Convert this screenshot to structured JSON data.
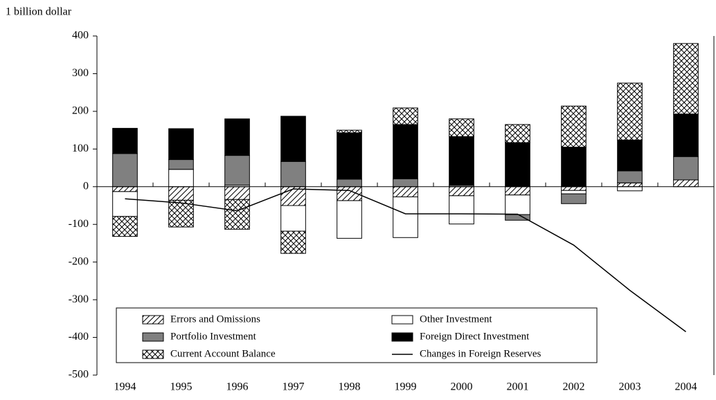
{
  "chart_data": {
    "type": "bar",
    "stacked": true,
    "y_axis_label": "1 billion dollar",
    "categories": [
      "1994",
      "1995",
      "1996",
      "1997",
      "1998",
      "1999",
      "2000",
      "2001",
      "2002",
      "2003",
      "2004"
    ],
    "series": [
      {
        "name": "Errors and Omissions",
        "color": "#ffffff",
        "pattern": "hatch",
        "values": [
          -13,
          -36,
          -34,
          -50,
          -37,
          -27,
          -24,
          -22,
          -10,
          10,
          18
        ]
      },
      {
        "name": "Other Investment",
        "color": "#ffffff",
        "pattern": "none",
        "values": [
          -66,
          46,
          4,
          -68,
          -100,
          -108,
          -75,
          -52,
          -9,
          -11,
          0
        ]
      },
      {
        "name": "Portfolio Investment",
        "color": "#808080",
        "pattern": "none",
        "values": [
          88,
          26,
          79,
          67,
          20,
          21,
          4,
          -15,
          -26,
          32,
          62
        ]
      },
      {
        "name": "Foreign Direct Investment",
        "color": "#000000",
        "pattern": "none",
        "values": [
          67,
          82,
          97,
          120,
          123,
          144,
          129,
          117,
          105,
          82,
          113
        ]
      },
      {
        "name": "Current Account Balance",
        "color": "#ffffff",
        "pattern": "crosshatch",
        "values": [
          -53,
          -71,
          -79,
          -59,
          7,
          44,
          47,
          48,
          109,
          151,
          187
        ]
      },
      {
        "name": "Changes in Foreign Reserves",
        "type": "line",
        "color": "#000000",
        "values": [
          -32,
          -43,
          -64,
          -6,
          -10,
          -72,
          -72,
          -73,
          -155,
          -275,
          -385
        ]
      }
    ],
    "ylim": [
      -500,
      400
    ],
    "yticks": [
      -500,
      -400,
      -300,
      -200,
      -100,
      0,
      100,
      200,
      300,
      400
    ],
    "grid": false,
    "legend": "bottom"
  }
}
